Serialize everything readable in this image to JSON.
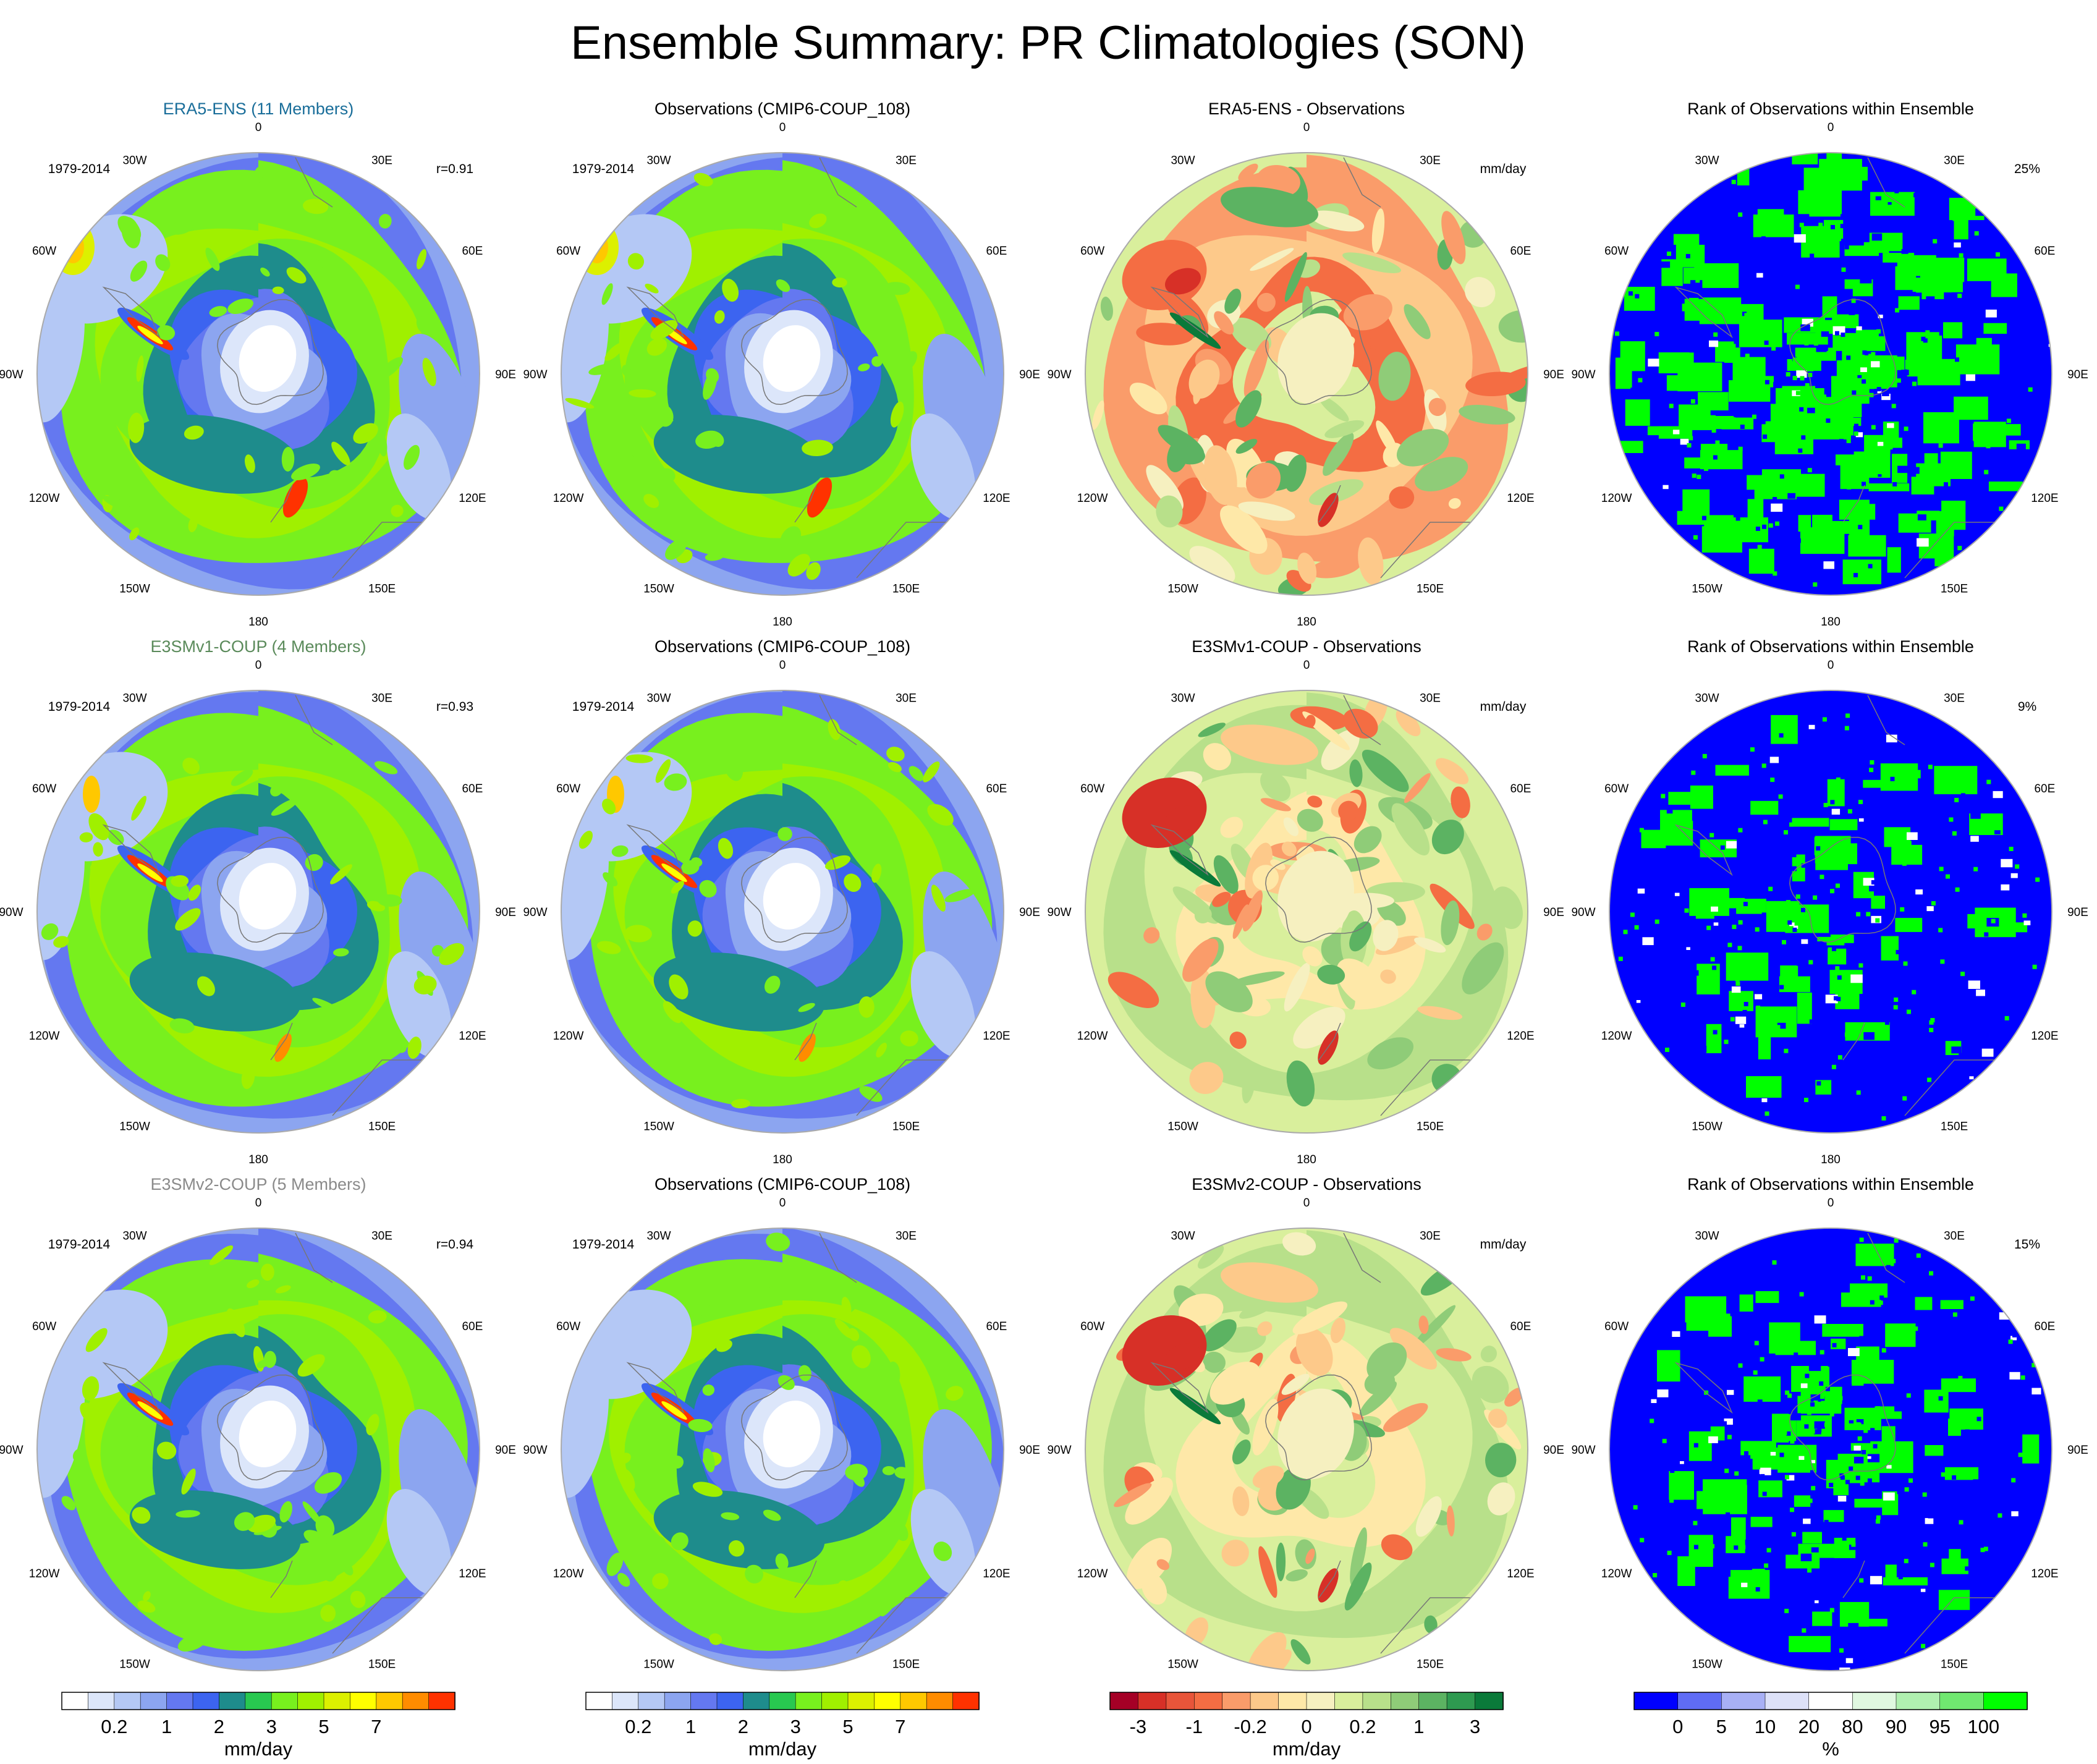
{
  "figure": {
    "title": "Ensemble Summary: PR Climatologies (SON)",
    "colors": {
      "model_title_1": "#1a6e9a",
      "model_title_2": "#5a8a5a",
      "model_title_3": "#8a8a8a"
    }
  },
  "lon_labels": [
    "0",
    "30E",
    "60E",
    "90E",
    "120E",
    "150E",
    "180",
    "150W",
    "120W",
    "90W",
    "60W",
    "30W"
  ],
  "chart_data": [
    {
      "type": "heatmap",
      "panel": "r1c1",
      "title": "ERA5-ENS (11 Members)",
      "period": "1979-2014",
      "corner": "r=0.91",
      "field": "precip"
    },
    {
      "type": "heatmap",
      "panel": "r1c2",
      "title": "Observations (CMIP6-COUP_108)",
      "period": "1979-2014",
      "corner": "",
      "field": "precip"
    },
    {
      "type": "heatmap",
      "panel": "r1c3",
      "title": "ERA5-ENS - Observations",
      "period": "",
      "corner": "mm/day",
      "field": "diff"
    },
    {
      "type": "heatmap",
      "panel": "r1c4",
      "title": "Rank of Observations within Ensemble",
      "period": "",
      "corner": "25%",
      "field": "rank"
    },
    {
      "type": "heatmap",
      "panel": "r2c1",
      "title": "E3SMv1-COUP (4 Members)",
      "period": "1979-2014",
      "corner": "r=0.93",
      "field": "precip"
    },
    {
      "type": "heatmap",
      "panel": "r2c2",
      "title": "Observations (CMIP6-COUP_108)",
      "period": "1979-2014",
      "corner": "",
      "field": "precip"
    },
    {
      "type": "heatmap",
      "panel": "r2c3",
      "title": "E3SMv1-COUP - Observations",
      "period": "",
      "corner": "mm/day",
      "field": "diff"
    },
    {
      "type": "heatmap",
      "panel": "r2c4",
      "title": "Rank of Observations within Ensemble",
      "period": "",
      "corner": "9%",
      "field": "rank"
    },
    {
      "type": "heatmap",
      "panel": "r3c1",
      "title": "E3SMv2-COUP (5 Members)",
      "period": "1979-2014",
      "corner": "r=0.94",
      "field": "precip"
    },
    {
      "type": "heatmap",
      "panel": "r3c2",
      "title": "Observations (CMIP6-COUP_108)",
      "period": "1979-2014",
      "corner": "",
      "field": "precip"
    },
    {
      "type": "heatmap",
      "panel": "r3c3",
      "title": "E3SMv2-COUP - Observations",
      "period": "",
      "corner": "mm/day",
      "field": "diff"
    },
    {
      "type": "heatmap",
      "panel": "r3c4",
      "title": "Rank of Observations within Ensemble",
      "period": "",
      "corner": "15%",
      "field": "rank"
    }
  ],
  "colorbars": [
    {
      "id": "precip1",
      "label": "mm/day",
      "ticks": [
        "0.2",
        "1",
        "2",
        "3",
        "5",
        "7"
      ],
      "colors": [
        "#ffffff",
        "#dce6fa",
        "#b4c8f5",
        "#8ca5f0",
        "#6478f0",
        "#3c64f0",
        "#1e8c8c",
        "#28c850",
        "#78f01e",
        "#a0f000",
        "#dcf000",
        "#ffff00",
        "#ffc800",
        "#ff8c00",
        "#ff3200"
      ]
    },
    {
      "id": "precip2",
      "label": "mm/day",
      "ticks": [
        "0.2",
        "1",
        "2",
        "3",
        "5",
        "7"
      ],
      "colors": [
        "#ffffff",
        "#dce6fa",
        "#b4c8f5",
        "#8ca5f0",
        "#6478f0",
        "#3c64f0",
        "#1e8c8c",
        "#28c850",
        "#78f01e",
        "#a0f000",
        "#dcf000",
        "#ffff00",
        "#ffc800",
        "#ff8c00",
        "#ff3200"
      ]
    },
    {
      "id": "diff",
      "label": "mm/day",
      "ticks": [
        "-3",
        "-1",
        "-0.2",
        "0",
        "0.2",
        "1",
        "3"
      ],
      "colors": [
        "#a50026",
        "#d73027",
        "#e8553a",
        "#f46d43",
        "#fa9c6a",
        "#fdc98a",
        "#fee8a8",
        "#f6f0c0",
        "#d9ef9c",
        "#b8e08a",
        "#8fcc78",
        "#5cb362",
        "#2e9a50",
        "#0a7a3a"
      ]
    },
    {
      "id": "rank",
      "label": "%",
      "ticks": [
        "0",
        "5",
        "10",
        "20",
        "80",
        "90",
        "95",
        "100"
      ],
      "colors": [
        "#0000ff",
        "#5f6cf5",
        "#a8b0f5",
        "#dde1f8",
        "#ffffff",
        "#e0f8e0",
        "#b0f0b0",
        "#70e870",
        "#00ff00"
      ]
    }
  ]
}
